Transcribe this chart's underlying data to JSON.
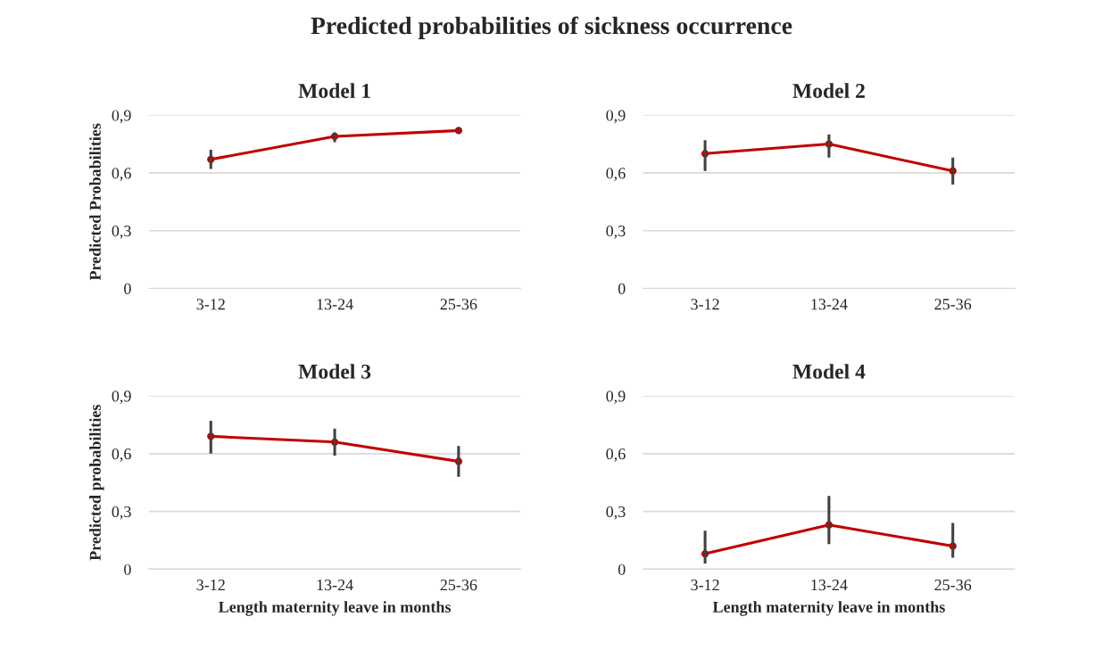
{
  "chart_data": [
    {
      "type": "line",
      "title": "Model 1",
      "ylabel": "Predicted Probabilities",
      "annotations": [
        "Predicted probabilities of sickness occurrence"
      ],
      "categories": [
        "3-12",
        "13-24",
        "25-36"
      ],
      "series": [
        {
          "color": "#c00000",
          "values": [
            0.67,
            0.79,
            0.82
          ],
          "errors": [
            [
              0.62,
              0.72
            ],
            [
              0.76,
              0.81
            ],
            [
              0.81,
              0.83
            ]
          ]
        }
      ],
      "ylim": [
        0,
        0.9
      ],
      "yticks": [
        0,
        {
          "value": 0.3,
          "label": "0,3"
        },
        {
          "value": 0.6,
          "label": "0,6"
        },
        {
          "value": 0.9,
          "label": "0,9"
        }
      ],
      "grid": "y",
      "marker": "circle",
      "line_style": "solid"
    },
    {
      "type": "line",
      "title": "Model 2",
      "categories": [
        "3-12",
        "13-24",
        "25-36"
      ],
      "series": [
        {
          "color": "#c00000",
          "values": [
            0.7,
            0.75,
            0.61
          ],
          "errors": [
            [
              0.61,
              0.77
            ],
            [
              0.68,
              0.8
            ],
            [
              0.54,
              0.68
            ]
          ]
        }
      ],
      "ylim": [
        0,
        0.9
      ],
      "yticks": [
        0,
        {
          "value": 0.3,
          "label": "0,3"
        },
        {
          "value": 0.6,
          "label": "0,6"
        },
        {
          "value": 0.9,
          "label": "0,9"
        }
      ],
      "grid": "y",
      "marker": "circle",
      "line_style": "solid"
    },
    {
      "type": "line",
      "title": "Model 3",
      "ylabel": "Predicted probabilities",
      "xlabel": "Length maternity leave in months",
      "categories": [
        "3-12",
        "13-24",
        "25-36"
      ],
      "series": [
        {
          "color": "#c00000",
          "values": [
            0.69,
            0.66,
            0.56
          ],
          "errors": [
            [
              0.6,
              0.77
            ],
            [
              0.59,
              0.73
            ],
            [
              0.48,
              0.64
            ]
          ]
        }
      ],
      "ylim": [
        0,
        0.9
      ],
      "yticks": [
        0,
        {
          "value": 0.3,
          "label": "0,3"
        },
        {
          "value": 0.6,
          "label": "0,6"
        },
        {
          "value": 0.9,
          "label": "0,9"
        }
      ],
      "grid": "y",
      "marker": "circle",
      "line_style": "solid"
    },
    {
      "type": "line",
      "title": "Model 4",
      "xlabel": "Length maternity leave in months",
      "categories": [
        "3-12",
        "13-24",
        "25-36"
      ],
      "series": [
        {
          "color": "#c00000",
          "values": [
            0.08,
            0.23,
            0.12
          ],
          "errors": [
            [
              0.03,
              0.2
            ],
            [
              0.13,
              0.38
            ],
            [
              0.06,
              0.24
            ]
          ]
        }
      ],
      "ylim": [
        0,
        0.9
      ],
      "yticks": [
        0,
        {
          "value": 0.3,
          "label": "0,3"
        },
        {
          "value": 0.6,
          "label": "0,6"
        },
        {
          "value": 0.9,
          "label": "0,9"
        }
      ],
      "grid": "y",
      "marker": "circle",
      "line_style": "solid"
    }
  ]
}
